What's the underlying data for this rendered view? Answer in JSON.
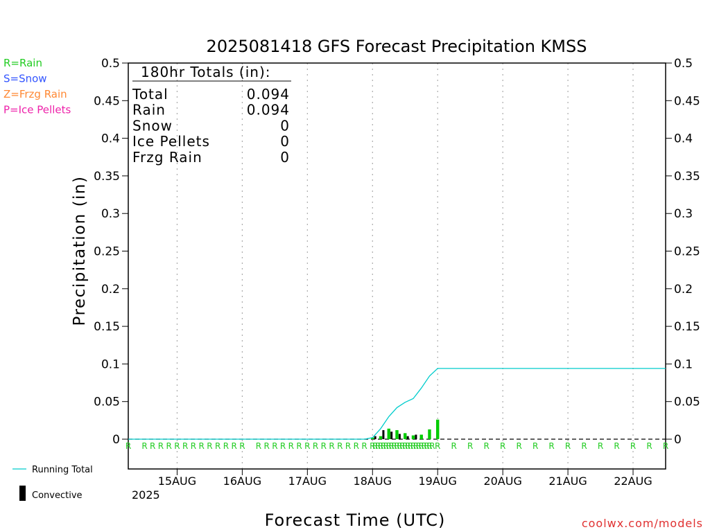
{
  "chart_data": {
    "type": "bar",
    "title": "2025081418 GFS Forecast Precipitation KMSS",
    "xlabel": "Forecast Time (UTC)",
    "ylabel": "Precipitation (in)",
    "ylim": [
      0,
      0.5
    ],
    "yticks": [
      "0",
      "0.05",
      "0.1",
      "0.15",
      "0.2",
      "0.25",
      "0.3",
      "0.35",
      "0.4",
      "0.45",
      "0.5"
    ],
    "xtick_labels": [
      "15AUG",
      "16AUG",
      "17AUG",
      "18AUG",
      "19AUG",
      "20AUG",
      "21AUG",
      "22AUG"
    ],
    "year_label": "2025",
    "grid": "vertical dotted lines at each day",
    "legend_types": [
      {
        "label": "R=Rain",
        "color": "#22cc22"
      },
      {
        "label": "S=Snow",
        "color": "#3355ff"
      },
      {
        "label": "Z=Frzg Rain",
        "color": "#ff8833"
      },
      {
        "label": "P=Ice Pellets",
        "color": "#ee22aa"
      }
    ],
    "legend_series": [
      {
        "label": "Running Total",
        "color": "#00cccc"
      },
      {
        "label": "Convective",
        "color": "#000000"
      }
    ],
    "totals": {
      "header": "180hr Totals (in):",
      "rows": [
        {
          "label": "Total",
          "value": "0.094"
        },
        {
          "label": "Rain",
          "value": "0.094"
        },
        {
          "label": "Snow",
          "value": "0"
        },
        {
          "label": "Ice Pellets",
          "value": "0"
        },
        {
          "label": "Frzg Rain",
          "value": "0"
        }
      ]
    },
    "precip_bars": [
      {
        "hour": 72,
        "value": 0.002
      },
      {
        "hour": 75,
        "value": 0.004
      },
      {
        "hour": 78,
        "value": 0.014
      },
      {
        "hour": 81,
        "value": 0.012
      },
      {
        "hour": 84,
        "value": 0.008
      },
      {
        "hour": 87,
        "value": 0.005
      },
      {
        "hour": 90,
        "value": 0.006
      },
      {
        "hour": 93,
        "value": 0.013
      },
      {
        "hour": 96,
        "value": 0.026
      }
    ],
    "convective_bars": [
      {
        "hour": 73,
        "value": 0.004
      },
      {
        "hour": 76,
        "value": 0.012
      },
      {
        "hour": 79,
        "value": 0.01
      },
      {
        "hour": 82,
        "value": 0.007
      },
      {
        "hour": 85,
        "value": 0.004
      },
      {
        "hour": 88,
        "value": 0.006
      }
    ],
    "running_total": [
      {
        "hour": -18,
        "value": 0
      },
      {
        "hour": 69,
        "value": 0
      },
      {
        "hour": 72,
        "value": 0.002
      },
      {
        "hour": 75,
        "value": 0.014
      },
      {
        "hour": 78,
        "value": 0.03
      },
      {
        "hour": 81,
        "value": 0.042
      },
      {
        "hour": 84,
        "value": 0.049
      },
      {
        "hour": 87,
        "value": 0.054
      },
      {
        "hour": 90,
        "value": 0.068
      },
      {
        "hour": 93,
        "value": 0.084
      },
      {
        "hour": 96,
        "value": 0.094
      },
      {
        "hour": 162,
        "value": 0.094
      },
      {
        "hour": 180,
        "value": 0.094
      }
    ],
    "rain_marker_label": "R",
    "rain_marker_hours": [
      -18,
      -12,
      -9,
      -6,
      -3,
      0,
      3,
      6,
      9,
      12,
      15,
      18,
      21,
      24,
      30,
      33,
      36,
      39,
      42,
      45,
      48,
      51,
      54,
      57,
      60,
      63,
      66,
      69,
      72,
      73,
      74,
      75,
      76,
      77,
      78,
      79,
      80,
      81,
      82,
      83,
      84,
      85,
      86,
      87,
      88,
      89,
      90,
      91,
      92,
      93,
      94,
      96,
      102,
      108,
      114,
      120,
      126,
      132,
      138,
      144,
      150,
      156,
      162,
      168,
      174,
      180
    ]
  },
  "footer": {
    "credit": "coolwx.com/models"
  }
}
